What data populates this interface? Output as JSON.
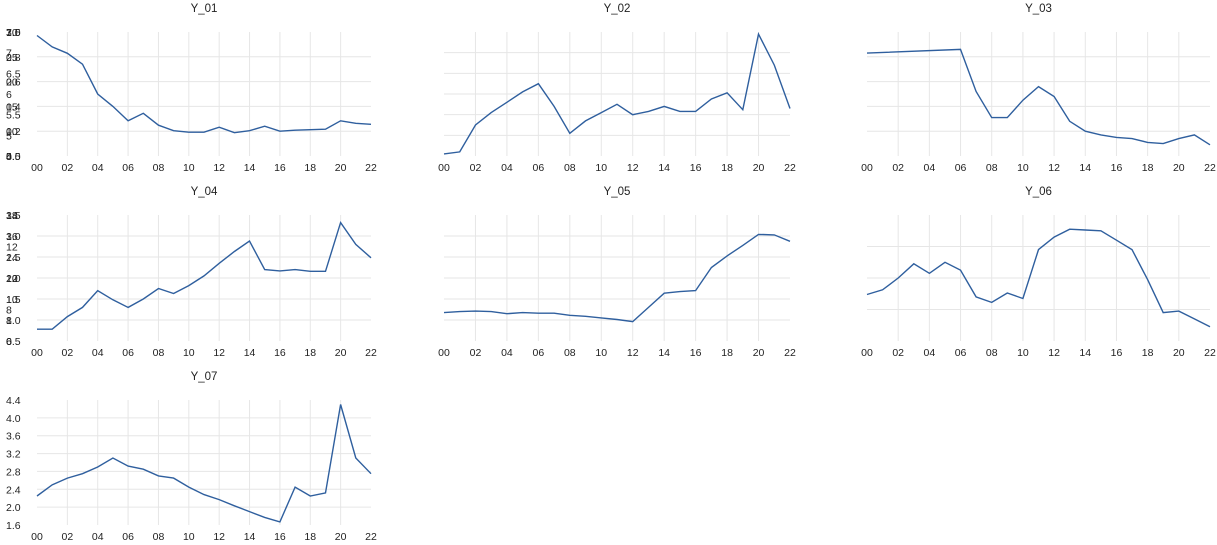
{
  "chart_data": [
    {
      "type": "line",
      "title": "Y_01",
      "xtick_labels": [
        "00",
        "02",
        "04",
        "06",
        "08",
        "10",
        "12",
        "14",
        "16",
        "18",
        "20",
        "22"
      ],
      "x": [
        2000,
        2001,
        2002,
        2003,
        2004,
        2005,
        2006,
        2007,
        2008,
        2009,
        2010,
        2011,
        2012,
        2013,
        2014,
        2015,
        2016,
        2017,
        2018,
        2019,
        2020,
        2021,
        2022
      ],
      "yticks": [
        5,
        10,
        15,
        20,
        25,
        30
      ],
      "ylim": [
        5,
        30
      ],
      "series": [
        {
          "values": [
            29.3,
            27.0,
            25.7,
            23.5,
            17.5,
            15.0,
            12.1,
            13.6,
            11.2,
            10.1,
            9.8,
            9.8,
            10.8,
            9.7,
            10.1,
            11.0,
            10.0,
            10.2,
            10.3,
            10.4,
            12.1,
            11.6,
            11.4
          ]
        }
      ],
      "color": "#2f5f9e"
    },
    {
      "type": "line",
      "title": "Y_02",
      "xtick_labels": [
        "00",
        "02",
        "04",
        "06",
        "08",
        "10",
        "12",
        "14",
        "16",
        "18",
        "20",
        "22"
      ],
      "x": [
        2000,
        2001,
        2002,
        2003,
        2004,
        2005,
        2006,
        2007,
        2008,
        2009,
        2010,
        2011,
        2012,
        2013,
        2014,
        2015,
        2016,
        2017,
        2018,
        2019,
        2020,
        2021,
        2022
      ],
      "yticks": [
        4.5,
        5.0,
        5.5,
        6.0,
        6.5,
        7.0,
        7.5
      ],
      "ylim": [
        4.5,
        7.5
      ],
      "series": [
        {
          "values": [
            4.55,
            4.6,
            5.25,
            5.55,
            5.8,
            6.05,
            6.25,
            5.7,
            5.05,
            5.35,
            5.55,
            5.75,
            5.5,
            5.58,
            5.7,
            5.58,
            5.58,
            5.88,
            6.03,
            5.62,
            7.45,
            6.7,
            5.65
          ]
        }
      ],
      "color": "#2f5f9e"
    },
    {
      "type": "line",
      "title": "Y_03",
      "xtick_labels": [
        "00",
        "02",
        "04",
        "06",
        "08",
        "10",
        "12",
        "14",
        "16",
        "18",
        "20",
        "22"
      ],
      "x": [
        2000,
        2006,
        2007,
        2008,
        2009,
        2010,
        2011,
        2012,
        2013,
        2014,
        2015,
        2016,
        2017,
        2018,
        2019,
        2020,
        2021,
        2022
      ],
      "yticks": [
        0.0,
        0.2,
        0.4,
        0.6,
        0.8,
        1.0
      ],
      "ylim": [
        0.0,
        1.0
      ],
      "series": [
        {
          "values": [
            0.83,
            0.86,
            0.52,
            0.31,
            0.31,
            0.45,
            0.56,
            0.48,
            0.28,
            0.2,
            0.17,
            0.15,
            0.14,
            0.11,
            0.1,
            0.14,
            0.17,
            0.09
          ]
        }
      ],
      "color": "#2f5f9e"
    },
    {
      "type": "line",
      "title": "Y_04",
      "xtick_labels": [
        "00",
        "02",
        "04",
        "06",
        "08",
        "10",
        "12",
        "14",
        "16",
        "18",
        "20",
        "22"
      ],
      "x": [
        2000,
        2001,
        2002,
        2003,
        2004,
        2005,
        2006,
        2007,
        2008,
        2009,
        2010,
        2011,
        2012,
        2013,
        2014,
        2015,
        2016,
        2017,
        2018,
        2019,
        2020,
        2021,
        2022
      ],
      "yticks": [
        0.5,
        1.0,
        1.5,
        2.0,
        2.5,
        3.0,
        3.5
      ],
      "ylim": [
        0.5,
        3.5
      ],
      "series": [
        {
          "values": [
            0.78,
            0.78,
            1.08,
            1.3,
            1.7,
            1.48,
            1.3,
            1.5,
            1.75,
            1.63,
            1.82,
            2.05,
            2.35,
            2.63,
            2.88,
            2.2,
            2.17,
            2.2,
            2.16,
            2.16,
            3.32,
            2.8,
            2.48
          ]
        }
      ],
      "color": "#2f5f9e"
    },
    {
      "type": "line",
      "title": "Y_05",
      "xtick_labels": [
        "00",
        "02",
        "04",
        "06",
        "08",
        "10",
        "12",
        "14",
        "16",
        "18",
        "20",
        "22"
      ],
      "x": [
        2000,
        2001,
        2002,
        2003,
        2004,
        2005,
        2006,
        2007,
        2008,
        2009,
        2010,
        2011,
        2012,
        2013,
        2014,
        2015,
        2016,
        2017,
        2018,
        2019,
        2020,
        2021,
        2022
      ],
      "yticks": [
        6,
        8,
        10,
        12,
        14,
        16,
        18
      ],
      "ylim": [
        6,
        18
      ],
      "series": [
        {
          "values": [
            8.7,
            8.8,
            8.85,
            8.8,
            8.6,
            8.7,
            8.65,
            8.65,
            8.45,
            8.35,
            8.2,
            8.05,
            7.85,
            9.2,
            10.55,
            10.7,
            10.8,
            13.0,
            14.1,
            15.1,
            16.15,
            16.1,
            15.5
          ]
        }
      ],
      "color": "#2f5f9e"
    },
    {
      "type": "line",
      "title": "Y_06",
      "xtick_labels": [
        "00",
        "02",
        "04",
        "06",
        "08",
        "10",
        "12",
        "14",
        "16",
        "18",
        "20",
        "22"
      ],
      "x": [
        2000,
        2001,
        2002,
        2003,
        2004,
        2005,
        2006,
        2007,
        2008,
        2009,
        2010,
        2011,
        2012,
        2013,
        2014,
        2015,
        2016,
        2017,
        2018,
        2019,
        2020,
        2021,
        2022
      ],
      "yticks": [
        6,
        8,
        10,
        12,
        14
      ],
      "ylim": [
        6,
        14
      ],
      "series": [
        {
          "values": [
            8.95,
            9.25,
            10.0,
            10.9,
            10.3,
            11.0,
            10.5,
            8.8,
            8.45,
            9.05,
            8.7,
            11.8,
            12.6,
            13.1,
            13.05,
            13.0,
            12.4,
            11.8,
            9.9,
            7.8,
            7.9,
            7.4,
            6.9
          ]
        }
      ],
      "color": "#2f5f9e"
    },
    {
      "type": "line",
      "title": "Y_07",
      "xtick_labels": [
        "00",
        "02",
        "04",
        "06",
        "08",
        "10",
        "12",
        "14",
        "16",
        "18",
        "20",
        "22"
      ],
      "x": [
        2000,
        2001,
        2002,
        2003,
        2004,
        2005,
        2006,
        2007,
        2008,
        2009,
        2010,
        2011,
        2012,
        2013,
        2014,
        2015,
        2016,
        2017,
        2018,
        2019,
        2020,
        2021,
        2022
      ],
      "yticks": [
        1.6,
        2.0,
        2.4,
        2.8,
        3.2,
        3.6,
        4.0,
        4.4
      ],
      "ylim": [
        1.6,
        4.4
      ],
      "series": [
        {
          "values": [
            2.25,
            2.5,
            2.65,
            2.75,
            2.9,
            3.1,
            2.92,
            2.85,
            2.7,
            2.65,
            2.45,
            2.28,
            2.17,
            2.03,
            1.9,
            1.77,
            1.67,
            2.45,
            2.25,
            2.32,
            4.3,
            3.1,
            2.75
          ]
        }
      ],
      "color": "#2f5f9e"
    }
  ]
}
